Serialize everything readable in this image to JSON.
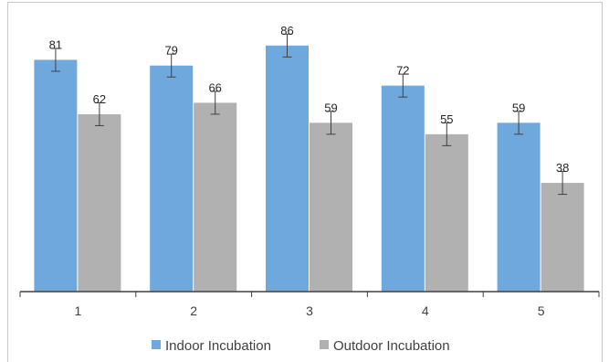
{
  "chart_data": {
    "type": "bar",
    "categories": [
      "1",
      "2",
      "3",
      "4",
      "5"
    ],
    "series": [
      {
        "name": "Indoor Incubation",
        "values": [
          81,
          79,
          86,
          72,
          59
        ],
        "error": [
          4,
          4,
          4,
          4,
          4
        ],
        "color": "#6fa8dc"
      },
      {
        "name": "Outdoor Incubation",
        "values": [
          62,
          66,
          59,
          55,
          38
        ],
        "error": [
          4,
          4,
          4,
          4,
          4
        ],
        "color": "#b1b1b1"
      }
    ],
    "ylim": [
      0,
      100
    ],
    "grid": false,
    "legend_position": "bottom",
    "data_labels": true,
    "error_bars": true
  }
}
